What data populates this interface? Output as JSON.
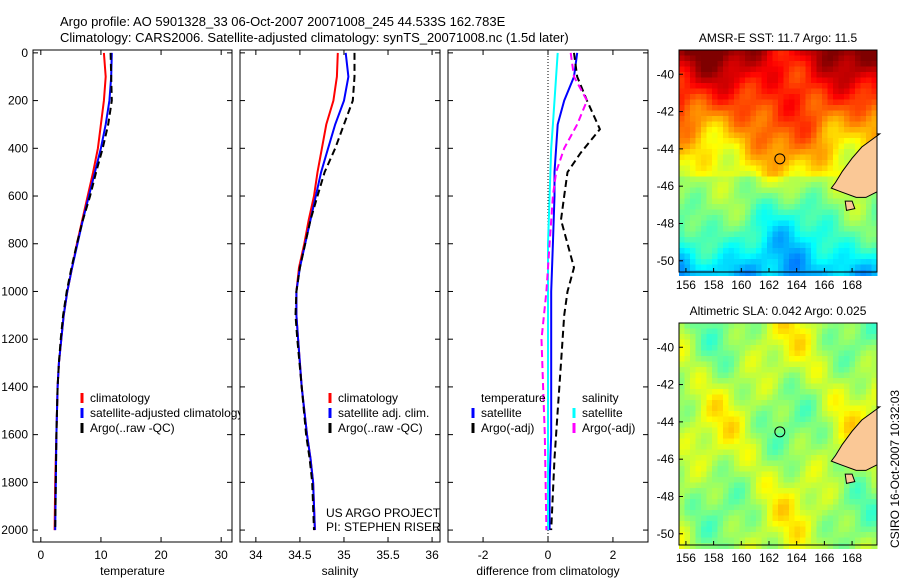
{
  "title": {
    "line1": "Argo profile: AO 5901328_33 06-Oct-2007 20071008_245 44.533S 162.783E",
    "line2": "Climatology: CARS2006. Satellite-adjusted climatology: synTS_20071008.nc (1.5d later)"
  },
  "side_stamp": "CSIRO 16-Oct-2007 10:32:03",
  "project_note": {
    "line1": "US ARGO PROJECT",
    "line2": "PI: STEPHEN RISER"
  },
  "colors": {
    "climatology": "#ff0000",
    "satellite": "#0000ff",
    "argo": "#000000",
    "sal_satellite": "#00ffff",
    "sal_argo": "#ff00ff",
    "land": "#fac896"
  },
  "chart_data": [
    {
      "type": "line",
      "id": "temperature",
      "xlabel": "temperature",
      "ylabel": "",
      "xlim": [
        -1.3,
        31.8
      ],
      "ylim": [
        -12,
        2050
      ],
      "xticks": [
        0,
        10,
        20,
        30
      ],
      "yticks": [
        0,
        200,
        400,
        600,
        800,
        1000,
        1200,
        1400,
        1600,
        1800,
        2000
      ],
      "y_reversed": true,
      "legend": {
        "placement": "bottom-right",
        "entries": [
          "climatology",
          "satellite-adjusted climatology",
          "Argo(..raw -QC)"
        ]
      },
      "series": [
        {
          "name": "climatology",
          "color": "#ff0000",
          "style": "solid",
          "x": [
            10.5,
            10.8,
            10.5,
            10.0,
            9.5,
            8.7,
            7.8,
            6.9,
            6.0,
            5.2,
            4.4,
            3.8,
            3.4,
            3.0,
            2.8,
            2.6,
            2.4,
            2.3
          ],
          "y": [
            0,
            100,
            200,
            300,
            400,
            500,
            600,
            700,
            800,
            900,
            1000,
            1100,
            1200,
            1300,
            1400,
            1600,
            1800,
            2000
          ]
        },
        {
          "name": "satellite-adjusted climatology",
          "color": "#0000ff",
          "style": "solid",
          "x": [
            11.8,
            11.7,
            11.4,
            10.8,
            10.0,
            9.0,
            8.0,
            7.0,
            6.1,
            5.2,
            4.4,
            3.8,
            3.4,
            3.0,
            2.8,
            2.6,
            2.5,
            2.4
          ],
          "y": [
            0,
            100,
            200,
            300,
            400,
            500,
            600,
            700,
            800,
            900,
            1000,
            1100,
            1200,
            1300,
            1400,
            1600,
            1800,
            2000
          ]
        },
        {
          "name": "Argo(..raw -QC)",
          "color": "#000000",
          "style": "dashed",
          "x": [
            11.6,
            11.7,
            11.8,
            11.2,
            10.3,
            9.2,
            8.2,
            7.0,
            6.0,
            5.1,
            4.3,
            3.7,
            3.3,
            3.0,
            2.8,
            2.6,
            2.5,
            2.4
          ],
          "y": [
            0,
            100,
            200,
            300,
            400,
            500,
            600,
            700,
            800,
            900,
            1000,
            1100,
            1200,
            1300,
            1400,
            1600,
            1800,
            2000
          ]
        }
      ]
    },
    {
      "type": "line",
      "id": "salinity",
      "xlabel": "salinity",
      "xlim": [
        33.82,
        36.09
      ],
      "ylim": [
        -12,
        2050
      ],
      "xticks": [
        34,
        34.5,
        35,
        35.5,
        36
      ],
      "y_reversed": true,
      "legend": {
        "placement": "bottom-right",
        "entries": [
          "climatology",
          "satellite adj. clim.",
          "Argo(..raw -QC)"
        ]
      },
      "series": [
        {
          "name": "climatology",
          "color": "#ff0000",
          "style": "solid",
          "x": [
            34.93,
            34.92,
            34.88,
            34.8,
            34.75,
            34.7,
            34.66,
            34.6,
            34.55,
            34.49,
            34.46,
            34.46,
            34.48,
            34.52,
            34.58,
            34.62,
            34.65,
            34.67
          ],
          "y": [
            0,
            100,
            200,
            300,
            400,
            500,
            600,
            700,
            800,
            900,
            1000,
            1100,
            1200,
            1400,
            1600,
            1700,
            1800,
            2000
          ]
        },
        {
          "name": "satellite adj. clim.",
          "color": "#0000ff",
          "style": "solid",
          "x": [
            35.02,
            35.05,
            35.0,
            34.9,
            34.82,
            34.74,
            34.68,
            34.62,
            34.56,
            34.5,
            34.46,
            34.46,
            34.48,
            34.52,
            34.58,
            34.62,
            34.65,
            34.67
          ],
          "y": [
            0,
            100,
            200,
            300,
            400,
            500,
            600,
            700,
            800,
            900,
            1000,
            1100,
            1200,
            1400,
            1600,
            1700,
            1800,
            2000
          ]
        },
        {
          "name": "Argo(..raw -QC)",
          "color": "#000000",
          "style": "dashed",
          "x": [
            35.12,
            35.12,
            35.1,
            35.0,
            34.9,
            34.78,
            34.7,
            34.62,
            34.56,
            34.5,
            34.46,
            34.45,
            34.47,
            34.52,
            34.57,
            34.61,
            34.64,
            34.66
          ],
          "y": [
            0,
            100,
            200,
            300,
            400,
            500,
            600,
            700,
            800,
            900,
            1000,
            1100,
            1200,
            1400,
            1600,
            1700,
            1800,
            2000
          ]
        }
      ]
    },
    {
      "type": "line",
      "id": "difference",
      "xlabel": "difference from climatology",
      "xlim": [
        -3.08,
        3.08
      ],
      "ylim": [
        -12,
        2050
      ],
      "xticks": [
        -2,
        0,
        2
      ],
      "y_reversed": true,
      "legend": {
        "placement": "bottom",
        "temperature_header": "temperature",
        "salinity_header": "salinity",
        "entries": [
          "satellite",
          "Argo(-adj)",
          "satellite",
          "Argo(-adj)"
        ]
      },
      "series": [
        {
          "name": "temperature satellite",
          "color": "#0000ff",
          "style": "solid",
          "x": [
            0.9,
            0.8,
            0.5,
            0.3,
            0.25,
            0.2,
            0.2,
            0.15,
            0.1,
            0.1,
            0.1,
            0.1,
            0.05,
            0.05
          ],
          "y": [
            0,
            100,
            200,
            300,
            400,
            500,
            600,
            800,
            1000,
            1200,
            1400,
            1600,
            1800,
            2000
          ]
        },
        {
          "name": "temperature Argo(-adj)",
          "color": "#000000",
          "style": "dashed",
          "x": [
            0.8,
            0.9,
            1.2,
            1.6,
            1.0,
            0.6,
            0.5,
            0.4,
            0.6,
            0.8,
            0.6,
            0.5,
            0.4,
            0.3,
            0.2,
            0.1
          ],
          "y": [
            0,
            100,
            200,
            320,
            420,
            500,
            600,
            700,
            800,
            900,
            1000,
            1100,
            1300,
            1500,
            1700,
            2000
          ]
        },
        {
          "name": "salinity satellite",
          "color": "#00ffff",
          "style": "solid",
          "x": [
            0.3,
            0.25,
            0.2,
            0.15,
            0.1,
            0.05,
            0.0,
            0.0,
            0.0,
            0.0,
            0.0
          ],
          "y": [
            0,
            100,
            200,
            300,
            400,
            600,
            800,
            1000,
            1400,
            1800,
            2000
          ]
        },
        {
          "name": "salinity Argo(-adj)",
          "color": "#ff00ff",
          "style": "dashed",
          "x": [
            0.7,
            0.8,
            1.2,
            0.9,
            0.5,
            0.25,
            0.15,
            0.05,
            -0.05,
            -0.2,
            -0.15,
            -0.1,
            -0.05
          ],
          "y": [
            0,
            100,
            200,
            300,
            400,
            500,
            600,
            800,
            1000,
            1200,
            1400,
            1600,
            2000
          ]
        }
      ]
    },
    {
      "type": "heatmap",
      "id": "sst-map",
      "title": "AMSR-E SST: 11.7 Argo: 11.5",
      "xlim": [
        155.5,
        169.8
      ],
      "ylim": [
        -50.6,
        -38.7
      ],
      "xticks": [
        156,
        158,
        160,
        162,
        164,
        166,
        168
      ],
      "yticks": [
        -40,
        -42,
        -44,
        -46,
        -48,
        -50
      ],
      "marker": {
        "lon": 162.783,
        "lat": -44.533
      }
    },
    {
      "type": "heatmap",
      "id": "sla-map",
      "title": "Altimetric SLA: 0.042 Argo: 0.025",
      "xlim": [
        155.5,
        169.8
      ],
      "ylim": [
        -50.6,
        -38.7
      ],
      "xticks": [
        156,
        158,
        160,
        162,
        164,
        166,
        168
      ],
      "yticks": [
        -40,
        -42,
        -44,
        -46,
        -48,
        -50
      ],
      "marker": {
        "lon": 162.783,
        "lat": -44.533
      }
    }
  ]
}
